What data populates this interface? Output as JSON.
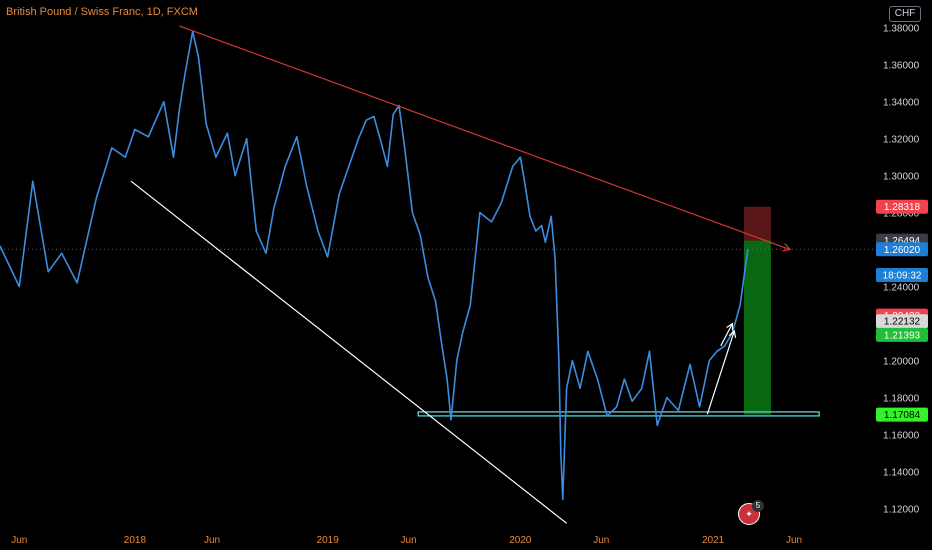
{
  "header": {
    "title": "British Pound / Swiss Franc, 1D, FXCM",
    "currency_button": "CHF"
  },
  "badge": {
    "count": "5",
    "icon": "fire-icon"
  },
  "colors": {
    "price_line": "#3c8de0",
    "resistance_line": "#d23a32",
    "support_trendline": "#ffffff",
    "horizontal_support": "#4fd8d8",
    "target_zone": "#0a7a14",
    "stop_zone": "#6a1b1b",
    "tag_red": "#f2434c",
    "tag_gray": "#3a3d44",
    "tag_white": "#d8d8d8",
    "tag_green": "#1fbf3a",
    "tag_bright_green": "#34f22a",
    "tag_blue": "#1e7fd6",
    "axis_text": "#d0d4dc",
    "time_axis_text": "#e8893a"
  },
  "chart_data": {
    "type": "line",
    "title": "British Pound / Swiss Franc, 1D, FXCM",
    "xlabel": "",
    "ylabel": "",
    "x_ticks": [
      "Jun",
      "2018",
      "Jun",
      "2019",
      "Jun",
      "2020",
      "Jun",
      "2021",
      "Jun"
    ],
    "y_ticks": [
      "1.38000",
      "1.36000",
      "1.34000",
      "1.32000",
      "1.30000",
      "1.28000",
      "1.24000",
      "1.20000",
      "1.18000",
      "1.16000",
      "1.14000",
      "1.12000"
    ],
    "ylim": [
      1.11,
      1.395
    ],
    "series": [
      {
        "values": [
          [
            2017.3,
            1.262
          ],
          [
            2017.4,
            1.24
          ],
          [
            2017.47,
            1.297
          ],
          [
            2017.55,
            1.248
          ],
          [
            2017.62,
            1.258
          ],
          [
            2017.7,
            1.242
          ],
          [
            2017.8,
            1.288
          ],
          [
            2017.88,
            1.315
          ],
          [
            2017.95,
            1.31
          ],
          [
            2018.0,
            1.325
          ],
          [
            2018.07,
            1.321
          ],
          [
            2018.15,
            1.34
          ],
          [
            2018.2,
            1.31
          ],
          [
            2018.23,
            1.335
          ],
          [
            2018.26,
            1.355
          ],
          [
            2018.3,
            1.378
          ],
          [
            2018.33,
            1.364
          ],
          [
            2018.37,
            1.328
          ],
          [
            2018.42,
            1.31
          ],
          [
            2018.48,
            1.323
          ],
          [
            2018.52,
            1.3
          ],
          [
            2018.58,
            1.32
          ],
          [
            2018.63,
            1.27
          ],
          [
            2018.68,
            1.258
          ],
          [
            2018.72,
            1.282
          ],
          [
            2018.78,
            1.305
          ],
          [
            2018.84,
            1.321
          ],
          [
            2018.89,
            1.295
          ],
          [
            2018.95,
            1.27
          ],
          [
            2019.0,
            1.256
          ],
          [
            2019.06,
            1.29
          ],
          [
            2019.11,
            1.305
          ],
          [
            2019.16,
            1.32
          ],
          [
            2019.2,
            1.33
          ],
          [
            2019.24,
            1.332
          ],
          [
            2019.28,
            1.317
          ],
          [
            2019.31,
            1.305
          ],
          [
            2019.34,
            1.333
          ],
          [
            2019.37,
            1.338
          ],
          [
            2019.4,
            1.315
          ],
          [
            2019.44,
            1.28
          ],
          [
            2019.48,
            1.268
          ],
          [
            2019.52,
            1.245
          ],
          [
            2019.56,
            1.232
          ],
          [
            2019.59,
            1.21
          ],
          [
            2019.62,
            1.19
          ],
          [
            2019.64,
            1.168
          ],
          [
            2019.67,
            1.2
          ],
          [
            2019.7,
            1.215
          ],
          [
            2019.74,
            1.23
          ],
          [
            2019.79,
            1.28
          ],
          [
            2019.85,
            1.275
          ],
          [
            2019.9,
            1.285
          ],
          [
            2019.96,
            1.305
          ],
          [
            2020.0,
            1.31
          ],
          [
            2020.02,
            1.298
          ],
          [
            2020.05,
            1.278
          ],
          [
            2020.08,
            1.27
          ],
          [
            2020.11,
            1.273
          ],
          [
            2020.13,
            1.264
          ],
          [
            2020.16,
            1.278
          ],
          [
            2020.18,
            1.255
          ],
          [
            2020.2,
            1.2
          ],
          [
            2020.21,
            1.15
          ],
          [
            2020.22,
            1.125
          ],
          [
            2020.24,
            1.185
          ],
          [
            2020.27,
            1.2
          ],
          [
            2020.31,
            1.185
          ],
          [
            2020.35,
            1.205
          ],
          [
            2020.4,
            1.19
          ],
          [
            2020.45,
            1.17
          ],
          [
            2020.5,
            1.175
          ],
          [
            2020.54,
            1.19
          ],
          [
            2020.58,
            1.178
          ],
          [
            2020.63,
            1.185
          ],
          [
            2020.67,
            1.205
          ],
          [
            2020.71,
            1.165
          ],
          [
            2020.76,
            1.18
          ],
          [
            2020.82,
            1.173
          ],
          [
            2020.88,
            1.198
          ],
          [
            2020.93,
            1.175
          ],
          [
            2020.98,
            1.2
          ],
          [
            2021.02,
            1.205
          ],
          [
            2021.06,
            1.208
          ],
          [
            2021.1,
            1.215
          ],
          [
            2021.14,
            1.23
          ],
          [
            2021.18,
            1.2602
          ]
        ]
      }
    ],
    "drawings": {
      "resistance_line": {
        "from": [
          2018.23,
          1.381
        ],
        "to": [
          2021.4,
          1.26
        ]
      },
      "support_trendline": {
        "from": [
          2017.98,
          1.297
        ],
        "to": [
          2020.24,
          1.112
        ]
      },
      "horizontal_support": {
        "from": [
          2019.47,
          1.17
        ],
        "to": [
          2021.55,
          1.1717
        ]
      },
      "target_zone": {
        "x_from": 2021.16,
        "x_to": 2021.3,
        "y_from": 1.1708,
        "y_to": 1.2649
      },
      "stop_zone": {
        "x_from": 2021.16,
        "x_to": 2021.3,
        "y_from": 1.2649,
        "y_to": 1.2832
      },
      "arrow_1": {
        "from": [
          2020.97,
          1.171
        ],
        "to": [
          2021.11,
          1.216
        ]
      },
      "arrow_2": {
        "from": [
          2021.04,
          1.208
        ],
        "to": [
          2021.1,
          1.22
        ]
      },
      "current_price_line": 1.2602
    },
    "price_tags": [
      {
        "label": "1.28318",
        "value": 1.2832,
        "color": "tag_red",
        "text_color": "#ffffff"
      },
      {
        "label": "1.26494",
        "value": 1.2649,
        "color": "tag_gray",
        "text_color": "#ffffff"
      },
      {
        "label": "1.26020",
        "value": 1.2602,
        "color": "tag_blue",
        "text_color": "#ffffff"
      },
      {
        "label": "18:09:32",
        "value": 1.2495,
        "color": "tag_blue",
        "text_color": "#ffffff"
      },
      {
        "label": "1.22432",
        "value": 1.2243,
        "color": "tag_red",
        "text_color": "#ffffff"
      },
      {
        "label": "1.22132",
        "value": 1.2213,
        "color": "tag_white",
        "text_color": "#000000"
      },
      {
        "label": "1.21393",
        "value": 1.2139,
        "color": "tag_green",
        "text_color": "#ffffff"
      },
      {
        "label": "1.17084",
        "value": 1.1708,
        "color": "tag_bright_green",
        "text_color": "#000000"
      }
    ]
  }
}
